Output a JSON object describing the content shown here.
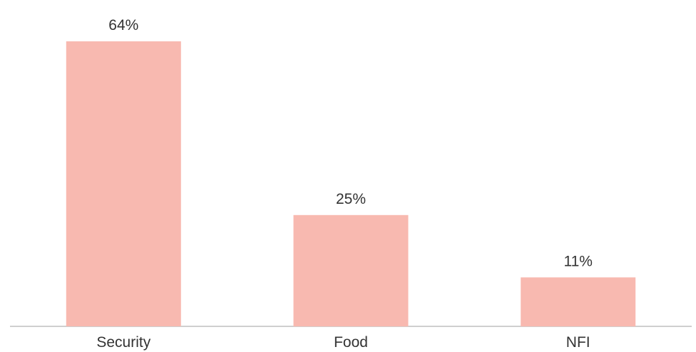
{
  "chart_data": {
    "type": "bar",
    "categories": [
      "Security",
      "Food",
      "NFI"
    ],
    "values": [
      64,
      25,
      11
    ],
    "data_labels": [
      "64%",
      "25%",
      "11%"
    ],
    "title": "",
    "xlabel": "",
    "ylabel": "",
    "ylim": [
      0,
      70
    ],
    "grid": false,
    "legend": "none",
    "colors": {
      "bar": "#F8B9B0",
      "axis": "#BFBFBF",
      "text": "#333333"
    }
  }
}
